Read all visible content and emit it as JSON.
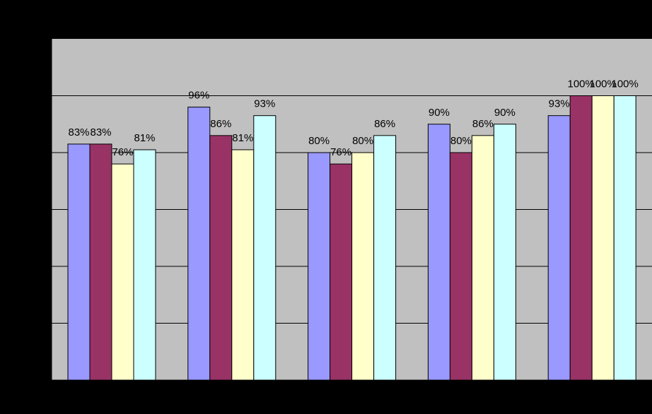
{
  "chart_data": {
    "type": "bar",
    "categories": [
      "",
      "",
      "",
      "",
      ""
    ],
    "series": [
      {
        "color": "#9999ff",
        "values": [
          83,
          96,
          80,
          90,
          93
        ],
        "labels": [
          "83%",
          "96%",
          "80%",
          "90%",
          "93%"
        ]
      },
      {
        "color": "#993366",
        "values": [
          83,
          86,
          76,
          80,
          100
        ],
        "labels": [
          "83%",
          "86%",
          "76%",
          "80%",
          "100%"
        ]
      },
      {
        "color": "#ffffcc",
        "values": [
          76,
          81,
          80,
          86,
          100
        ],
        "labels": [
          "76%",
          "81%",
          "80%",
          "86%",
          "100%"
        ]
      },
      {
        "color": "#ccffff",
        "values": [
          81,
          93,
          86,
          90,
          100
        ],
        "labels": [
          "81%",
          "93%",
          "86%",
          "90%",
          "100%"
        ]
      }
    ],
    "ylim": [
      0,
      120
    ],
    "y_gridlines": [
      20,
      40,
      60,
      80,
      100
    ],
    "grid": true,
    "plot_background": "#c0c0c0",
    "page_background": "#000000",
    "label_color": "#000000",
    "gridline_color": "#000000"
  }
}
